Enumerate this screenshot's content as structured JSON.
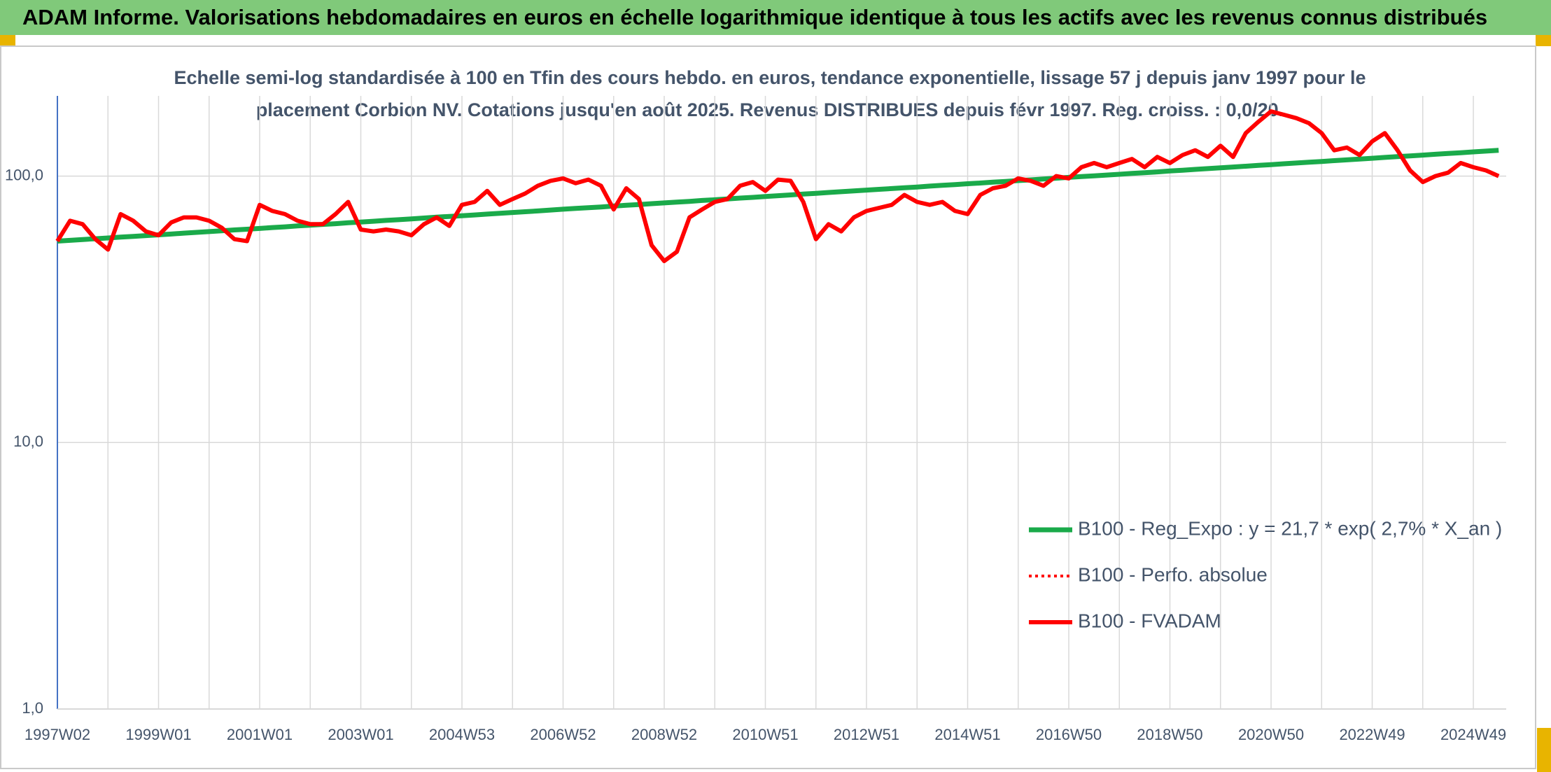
{
  "header": {
    "title": "ADAM Informe. Valorisations hebdomadaires en euros en échelle logarithmique identique à tous les actifs avec les revenus connus distribués"
  },
  "chart_data": {
    "type": "line",
    "subtitle": [
      "Echelle semi-log standardisée à 100 en Tfin des cours hebdo. en euros, tendance exponentielle, lissage 57 j depuis janv 1997 pour le",
      "placement Corbion NV. Cotations jusqu'en août 2025. Revenus DISTRIBUES depuis févr 1997. Reg. croiss. : 0,0/20."
    ],
    "log_scale": true,
    "grid": true,
    "legend": "lower right",
    "ylim": [
      1,
      200
    ],
    "yticks": [
      {
        "value": 1,
        "label": "1,0"
      },
      {
        "value": 10,
        "label": "10,0"
      },
      {
        "value": 100,
        "label": "100,0"
      }
    ],
    "categories": [
      "1997W02",
      null,
      null,
      null,
      null,
      null,
      null,
      null,
      "1999W01",
      null,
      null,
      null,
      null,
      null,
      null,
      null,
      "2001W01",
      null,
      null,
      null,
      null,
      null,
      null,
      null,
      "2003W01",
      null,
      null,
      null,
      null,
      null,
      null,
      null,
      "2004W53",
      null,
      null,
      null,
      null,
      null,
      null,
      null,
      "2006W52",
      null,
      null,
      null,
      null,
      null,
      null,
      null,
      "2008W52",
      null,
      null,
      null,
      null,
      null,
      null,
      null,
      "2010W51",
      null,
      null,
      null,
      null,
      null,
      null,
      null,
      "2012W51",
      null,
      null,
      null,
      null,
      null,
      null,
      null,
      "2014W51",
      null,
      null,
      null,
      null,
      null,
      null,
      null,
      "2016W50",
      null,
      null,
      null,
      null,
      null,
      null,
      null,
      "2018W50",
      null,
      null,
      null,
      null,
      null,
      null,
      null,
      "2020W50",
      null,
      null,
      null,
      null,
      null,
      null,
      null,
      "2022W49",
      null,
      null,
      null,
      null,
      null,
      null,
      null,
      "2024W49",
      null,
      null
    ],
    "series": [
      {
        "name": "B100 - Reg_Expo : y = 21,7 * exp( 2,7% *  X_an )",
        "color": "#1aaa4a",
        "style": "solid",
        "width": 7,
        "values": [
          57.0,
          57.4,
          57.8,
          58.2,
          58.6,
          59.0,
          59.4,
          59.8,
          60.2,
          60.6,
          61.1,
          61.5,
          61.9,
          62.3,
          62.8,
          63.2,
          63.6,
          64.1,
          64.5,
          65.0,
          65.4,
          65.9,
          66.3,
          66.8,
          67.2,
          67.7,
          68.2,
          68.6,
          69.1,
          69.6,
          70.1,
          70.6,
          71.0,
          71.5,
          72.0,
          72.5,
          73.0,
          73.5,
          74.0,
          74.6,
          75.1,
          75.6,
          76.1,
          76.6,
          77.2,
          77.7,
          78.2,
          78.8,
          79.3,
          79.9,
          80.4,
          81.0,
          81.5,
          82.1,
          82.7,
          83.2,
          83.8,
          84.4,
          85.0,
          85.6,
          86.2,
          86.8,
          87.4,
          88.0,
          88.6,
          89.2,
          89.8,
          90.4,
          91.0,
          91.7,
          92.3,
          92.9,
          93.6,
          94.2,
          94.9,
          95.5,
          96.2,
          96.8,
          97.5,
          98.2,
          98.9,
          99.6,
          100.2,
          100.9,
          101.6,
          102.3,
          103.0,
          103.7,
          104.5,
          105.2,
          106.0,
          106.7,
          107.4,
          108.2,
          108.9,
          109.7,
          110.4,
          111.2,
          112.0,
          112.7,
          113.5,
          114.3,
          115.1,
          115.9,
          116.7,
          117.5,
          118.3,
          119.1,
          119.9,
          120.8,
          121.6,
          122.4,
          123.3,
          124.1,
          125.0
        ]
      },
      {
        "name": "B100 - Perfo. absolue",
        "color": "#ff0000",
        "style": "dotted",
        "width": 4,
        "values": [
          57,
          68,
          66,
          58,
          53,
          72,
          68,
          62,
          60,
          67,
          70,
          70,
          68,
          64,
          58,
          57,
          78,
          74,
          72,
          68,
          66,
          66,
          72,
          80,
          63,
          62,
          63,
          62,
          60,
          66,
          70,
          65,
          78,
          80,
          88,
          78,
          82,
          86,
          92,
          96,
          98,
          94,
          97,
          92,
          75,
          90,
          82,
          55,
          48,
          52,
          70,
          75,
          80,
          82,
          92,
          95,
          88,
          97,
          96,
          80,
          58,
          66,
          62,
          70,
          74,
          76,
          78,
          85,
          80,
          78,
          80,
          74,
          72,
          85,
          90,
          92,
          98,
          96,
          92,
          100,
          98,
          108,
          112,
          108,
          112,
          116,
          108,
          118,
          112,
          120,
          125,
          118,
          130,
          118,
          145,
          160,
          175,
          170,
          165,
          158,
          145,
          125,
          128,
          120,
          135,
          145,
          125,
          105,
          95,
          100,
          103,
          112,
          108,
          105,
          100
        ]
      },
      {
        "name": "B100 - FVADAM",
        "color": "#ff0000",
        "style": "solid",
        "width": 6,
        "values": [
          57,
          68,
          66,
          58,
          53,
          72,
          68,
          62,
          60,
          67,
          70,
          70,
          68,
          64,
          58,
          57,
          78,
          74,
          72,
          68,
          66,
          66,
          72,
          80,
          63,
          62,
          63,
          62,
          60,
          66,
          70,
          65,
          78,
          80,
          88,
          78,
          82,
          86,
          92,
          96,
          98,
          94,
          97,
          92,
          75,
          90,
          82,
          55,
          48,
          52,
          70,
          75,
          80,
          82,
          92,
          95,
          88,
          97,
          96,
          80,
          58,
          66,
          62,
          70,
          74,
          76,
          78,
          85,
          80,
          78,
          80,
          74,
          72,
          85,
          90,
          92,
          98,
          96,
          92,
          100,
          98,
          108,
          112,
          108,
          112,
          116,
          108,
          118,
          112,
          120,
          125,
          118,
          130,
          118,
          145,
          160,
          175,
          170,
          165,
          158,
          145,
          125,
          128,
          120,
          135,
          145,
          125,
          105,
          95,
          100,
          103,
          112,
          108,
          105,
          100
        ]
      }
    ]
  }
}
